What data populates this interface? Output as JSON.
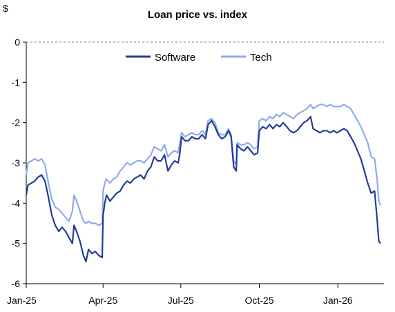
{
  "chart_data": {
    "type": "line",
    "title": "Loan price vs. index",
    "ylabel": "$",
    "xlabel": "",
    "ylim": [
      -6,
      0
    ],
    "yticks": [
      0,
      -1,
      -2,
      -3,
      -4,
      -5,
      -6
    ],
    "x_range": [
      "2025-01-01",
      "2026-02-24"
    ],
    "xticks": [
      {
        "date": "2025-01-01",
        "label": "Jan-25"
      },
      {
        "date": "2025-04-01",
        "label": "Apr-25"
      },
      {
        "date": "2025-07-01",
        "label": "Jul-25"
      },
      {
        "date": "2025-10-01",
        "label": "Oct-25"
      },
      {
        "date": "2026-01-01",
        "label": "Jan-26"
      }
    ],
    "zero_line": "dashed",
    "legend_position": "top-center",
    "series": [
      {
        "name": "Software",
        "color": "#1f3e96",
        "points": [
          [
            "2025-01-01",
            -3.8
          ],
          [
            "2025-01-03",
            -3.55
          ],
          [
            "2025-01-07",
            -3.5
          ],
          [
            "2025-01-11",
            -3.45
          ],
          [
            "2025-01-15",
            -3.35
          ],
          [
            "2025-01-19",
            -3.3
          ],
          [
            "2025-01-23",
            -3.45
          ],
          [
            "2025-01-27",
            -3.85
          ],
          [
            "2025-01-31",
            -4.3
          ],
          [
            "2025-02-04",
            -4.55
          ],
          [
            "2025-02-08",
            -4.7
          ],
          [
            "2025-02-12",
            -4.6
          ],
          [
            "2025-02-16",
            -4.7
          ],
          [
            "2025-02-20",
            -4.85
          ],
          [
            "2025-02-24",
            -5.0
          ],
          [
            "2025-02-26",
            -4.55
          ],
          [
            "2025-03-01",
            -4.7
          ],
          [
            "2025-03-05",
            -4.95
          ],
          [
            "2025-03-09",
            -5.3
          ],
          [
            "2025-03-12",
            -5.45
          ],
          [
            "2025-03-15",
            -5.15
          ],
          [
            "2025-03-19",
            -5.25
          ],
          [
            "2025-03-23",
            -5.2
          ],
          [
            "2025-03-27",
            -5.3
          ],
          [
            "2025-03-31",
            -5.35
          ],
          [
            "2025-04-01",
            -4.3
          ],
          [
            "2025-04-03",
            -4.0
          ],
          [
            "2025-04-05",
            -3.8
          ],
          [
            "2025-04-09",
            -3.95
          ],
          [
            "2025-04-13",
            -3.85
          ],
          [
            "2025-04-17",
            -3.75
          ],
          [
            "2025-04-21",
            -3.7
          ],
          [
            "2025-04-25",
            -3.55
          ],
          [
            "2025-04-29",
            -3.45
          ],
          [
            "2025-05-03",
            -3.5
          ],
          [
            "2025-05-07",
            -3.4
          ],
          [
            "2025-05-11",
            -3.35
          ],
          [
            "2025-05-15",
            -3.3
          ],
          [
            "2025-05-19",
            -3.4
          ],
          [
            "2025-05-23",
            -3.2
          ],
          [
            "2025-05-27",
            -3.1
          ],
          [
            "2025-05-31",
            -2.85
          ],
          [
            "2025-06-04",
            -2.95
          ],
          [
            "2025-06-08",
            -2.95
          ],
          [
            "2025-06-12",
            -2.8
          ],
          [
            "2025-06-16",
            -3.2
          ],
          [
            "2025-06-20",
            -3.05
          ],
          [
            "2025-06-24",
            -2.95
          ],
          [
            "2025-06-28",
            -3.0
          ],
          [
            "2025-06-30",
            -2.75
          ],
          [
            "2025-07-02",
            -2.35
          ],
          [
            "2025-07-06",
            -2.45
          ],
          [
            "2025-07-10",
            -2.45
          ],
          [
            "2025-07-14",
            -2.35
          ],
          [
            "2025-07-18",
            -2.4
          ],
          [
            "2025-07-22",
            -2.4
          ],
          [
            "2025-07-26",
            -2.3
          ],
          [
            "2025-07-30",
            -2.4
          ],
          [
            "2025-08-02",
            -2.05
          ],
          [
            "2025-08-06",
            -1.95
          ],
          [
            "2025-08-10",
            -2.1
          ],
          [
            "2025-08-14",
            -2.3
          ],
          [
            "2025-08-18",
            -2.4
          ],
          [
            "2025-08-22",
            -2.35
          ],
          [
            "2025-08-26",
            -2.2
          ],
          [
            "2025-08-29",
            -2.35
          ],
          [
            "2025-09-01",
            -3.1
          ],
          [
            "2025-09-04",
            -3.2
          ],
          [
            "2025-09-05",
            -2.55
          ],
          [
            "2025-09-09",
            -2.65
          ],
          [
            "2025-09-13",
            -2.7
          ],
          [
            "2025-09-17",
            -2.6
          ],
          [
            "2025-09-21",
            -2.7
          ],
          [
            "2025-09-25",
            -2.8
          ],
          [
            "2025-09-29",
            -2.75
          ],
          [
            "2025-10-01",
            -2.2
          ],
          [
            "2025-10-05",
            -2.1
          ],
          [
            "2025-10-09",
            -2.15
          ],
          [
            "2025-10-13",
            -2.05
          ],
          [
            "2025-10-17",
            -2.15
          ],
          [
            "2025-10-21",
            -2.05
          ],
          [
            "2025-10-25",
            -2.1
          ],
          [
            "2025-10-29",
            -2.0
          ],
          [
            "2025-11-02",
            -2.1
          ],
          [
            "2025-11-06",
            -2.2
          ],
          [
            "2025-11-10",
            -2.25
          ],
          [
            "2025-11-14",
            -2.2
          ],
          [
            "2025-11-18",
            -2.1
          ],
          [
            "2025-11-22",
            -2.0
          ],
          [
            "2025-11-26",
            -1.95
          ],
          [
            "2025-11-30",
            -1.85
          ],
          [
            "2025-12-03",
            -2.15
          ],
          [
            "2025-12-07",
            -2.2
          ],
          [
            "2025-12-11",
            -2.25
          ],
          [
            "2025-12-15",
            -2.2
          ],
          [
            "2025-12-19",
            -2.2
          ],
          [
            "2025-12-23",
            -2.25
          ],
          [
            "2025-12-27",
            -2.2
          ],
          [
            "2025-12-31",
            -2.25
          ],
          [
            "2026-01-04",
            -2.2
          ],
          [
            "2026-01-08",
            -2.15
          ],
          [
            "2026-01-12",
            -2.2
          ],
          [
            "2026-01-16",
            -2.35
          ],
          [
            "2026-01-20",
            -2.5
          ],
          [
            "2026-01-24",
            -2.7
          ],
          [
            "2026-01-28",
            -2.9
          ],
          [
            "2026-02-01",
            -3.2
          ],
          [
            "2026-02-05",
            -3.5
          ],
          [
            "2026-02-09",
            -3.75
          ],
          [
            "2026-02-13",
            -3.7
          ],
          [
            "2026-02-16",
            -4.4
          ],
          [
            "2026-02-18",
            -4.95
          ],
          [
            "2026-02-20",
            -5.0
          ]
        ]
      },
      {
        "name": "Tech",
        "color": "#8eaaef",
        "points": [
          [
            "2025-01-01",
            -3.3
          ],
          [
            "2025-01-03",
            -3.0
          ],
          [
            "2025-01-07",
            -2.95
          ],
          [
            "2025-01-11",
            -2.9
          ],
          [
            "2025-01-15",
            -2.95
          ],
          [
            "2025-01-19",
            -2.9
          ],
          [
            "2025-01-23",
            -3.05
          ],
          [
            "2025-01-27",
            -3.5
          ],
          [
            "2025-01-31",
            -3.9
          ],
          [
            "2025-02-04",
            -4.1
          ],
          [
            "2025-02-08",
            -4.15
          ],
          [
            "2025-02-12",
            -4.25
          ],
          [
            "2025-02-16",
            -4.35
          ],
          [
            "2025-02-20",
            -4.45
          ],
          [
            "2025-02-24",
            -4.2
          ],
          [
            "2025-02-26",
            -3.8
          ],
          [
            "2025-03-01",
            -3.95
          ],
          [
            "2025-03-05",
            -4.2
          ],
          [
            "2025-03-09",
            -4.45
          ],
          [
            "2025-03-12",
            -4.5
          ],
          [
            "2025-03-15",
            -4.45
          ],
          [
            "2025-03-19",
            -4.5
          ],
          [
            "2025-03-23",
            -4.5
          ],
          [
            "2025-03-27",
            -4.55
          ],
          [
            "2025-03-31",
            -4.5
          ],
          [
            "2025-04-01",
            -3.7
          ],
          [
            "2025-04-03",
            -3.5
          ],
          [
            "2025-04-05",
            -3.4
          ],
          [
            "2025-04-09",
            -3.5
          ],
          [
            "2025-04-13",
            -3.4
          ],
          [
            "2025-04-17",
            -3.35
          ],
          [
            "2025-04-21",
            -3.2
          ],
          [
            "2025-04-25",
            -3.1
          ],
          [
            "2025-04-29",
            -3.0
          ],
          [
            "2025-05-03",
            -3.05
          ],
          [
            "2025-05-07",
            -3.0
          ],
          [
            "2025-05-11",
            -2.95
          ],
          [
            "2025-05-15",
            -2.95
          ],
          [
            "2025-05-19",
            -3.0
          ],
          [
            "2025-05-23",
            -2.9
          ],
          [
            "2025-05-27",
            -2.8
          ],
          [
            "2025-05-31",
            -2.6
          ],
          [
            "2025-06-04",
            -2.65
          ],
          [
            "2025-06-08",
            -2.7
          ],
          [
            "2025-06-12",
            -2.55
          ],
          [
            "2025-06-16",
            -2.85
          ],
          [
            "2025-06-20",
            -2.75
          ],
          [
            "2025-06-24",
            -2.7
          ],
          [
            "2025-06-28",
            -2.75
          ],
          [
            "2025-06-30",
            -2.5
          ],
          [
            "2025-07-02",
            -2.25
          ],
          [
            "2025-07-06",
            -2.35
          ],
          [
            "2025-07-10",
            -2.3
          ],
          [
            "2025-07-14",
            -2.25
          ],
          [
            "2025-07-18",
            -2.3
          ],
          [
            "2025-07-22",
            -2.3
          ],
          [
            "2025-07-26",
            -2.2
          ],
          [
            "2025-07-30",
            -2.3
          ],
          [
            "2025-08-02",
            -1.95
          ],
          [
            "2025-08-06",
            -1.9
          ],
          [
            "2025-08-10",
            -2.0
          ],
          [
            "2025-08-14",
            -2.25
          ],
          [
            "2025-08-18",
            -2.3
          ],
          [
            "2025-08-22",
            -2.3
          ],
          [
            "2025-08-26",
            -2.15
          ],
          [
            "2025-08-29",
            -2.3
          ],
          [
            "2025-09-01",
            -2.95
          ],
          [
            "2025-09-04",
            -3.05
          ],
          [
            "2025-09-05",
            -2.5
          ],
          [
            "2025-09-09",
            -2.55
          ],
          [
            "2025-09-13",
            -2.55
          ],
          [
            "2025-09-17",
            -2.5
          ],
          [
            "2025-09-21",
            -2.55
          ],
          [
            "2025-09-25",
            -2.65
          ],
          [
            "2025-09-29",
            -2.6
          ],
          [
            "2025-10-01",
            -1.95
          ],
          [
            "2025-10-05",
            -1.9
          ],
          [
            "2025-10-09",
            -1.95
          ],
          [
            "2025-10-13",
            -1.85
          ],
          [
            "2025-10-17",
            -1.9
          ],
          [
            "2025-10-21",
            -1.8
          ],
          [
            "2025-10-25",
            -1.85
          ],
          [
            "2025-10-29",
            -1.75
          ],
          [
            "2025-11-02",
            -1.8
          ],
          [
            "2025-11-06",
            -1.85
          ],
          [
            "2025-11-10",
            -1.9
          ],
          [
            "2025-11-14",
            -1.8
          ],
          [
            "2025-11-18",
            -1.75
          ],
          [
            "2025-11-22",
            -1.7
          ],
          [
            "2025-11-26",
            -1.65
          ],
          [
            "2025-11-30",
            -1.55
          ],
          [
            "2025-12-03",
            -1.65
          ],
          [
            "2025-12-07",
            -1.6
          ],
          [
            "2025-12-11",
            -1.55
          ],
          [
            "2025-12-15",
            -1.55
          ],
          [
            "2025-12-19",
            -1.6
          ],
          [
            "2025-12-23",
            -1.55
          ],
          [
            "2025-12-27",
            -1.6
          ],
          [
            "2025-12-31",
            -1.6
          ],
          [
            "2026-01-04",
            -1.6
          ],
          [
            "2026-01-08",
            -1.55
          ],
          [
            "2026-01-12",
            -1.6
          ],
          [
            "2026-01-16",
            -1.65
          ],
          [
            "2026-01-20",
            -1.8
          ],
          [
            "2026-01-24",
            -1.95
          ],
          [
            "2026-01-28",
            -2.1
          ],
          [
            "2026-02-01",
            -2.3
          ],
          [
            "2026-02-05",
            -2.5
          ],
          [
            "2026-02-09",
            -2.85
          ],
          [
            "2026-02-13",
            -2.9
          ],
          [
            "2026-02-16",
            -3.4
          ],
          [
            "2026-02-18",
            -3.95
          ],
          [
            "2026-02-20",
            -4.05
          ]
        ]
      }
    ]
  }
}
